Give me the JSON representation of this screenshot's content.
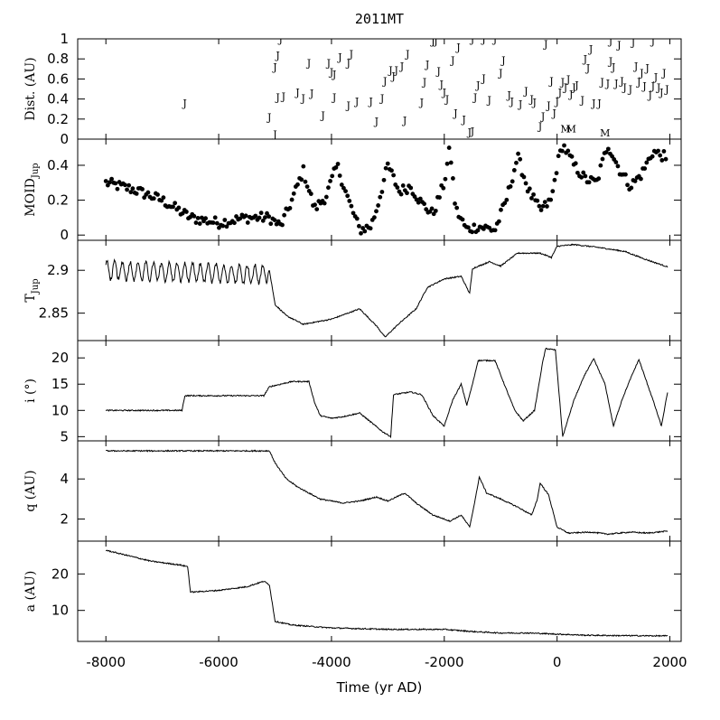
{
  "chart_data": {
    "type": "multi-panel",
    "title": "2011MT",
    "xlabel": "Time (yr AD)",
    "xlim": [
      -8500,
      2200
    ],
    "xticks": [
      -8000,
      -6000,
      -4000,
      -2000,
      0,
      2000
    ],
    "panels": [
      {
        "id": "dist",
        "type": "scatter-text",
        "ylabel": "Dist. (AU)",
        "ylim": [
          0,
          1
        ],
        "yticks": [
          0,
          0.2,
          0.4,
          0.6,
          0.8,
          1
        ],
        "ytick_labels": [
          "0",
          "0.2",
          "0.4",
          "0.6",
          "0.8",
          "1"
        ],
        "marker_label": "J",
        "marker_label_moon": "M",
        "points": [
          [
            -6600,
            0.36
          ],
          [
            -5100,
            0.22
          ],
          [
            -5000,
            0.05
          ],
          [
            -5000,
            0.72
          ],
          [
            -4950,
            0.84
          ],
          [
            -4900,
            1.0
          ],
          [
            -4950,
            0.42
          ],
          [
            -4850,
            0.43
          ],
          [
            -4600,
            0.47
          ],
          [
            -4500,
            0.41
          ],
          [
            -4400,
            0.76
          ],
          [
            -4350,
            0.46
          ],
          [
            -4150,
            0.24
          ],
          [
            -4050,
            0.76
          ],
          [
            -4000,
            0.67
          ],
          [
            -3950,
            0.42
          ],
          [
            -3950,
            0.65
          ],
          [
            -3850,
            0.82
          ],
          [
            -3700,
            0.76
          ],
          [
            -3700,
            0.34
          ],
          [
            -3650,
            0.85
          ],
          [
            -3550,
            0.38
          ],
          [
            -3300,
            0.38
          ],
          [
            -3200,
            0.18
          ],
          [
            -3100,
            0.41
          ],
          [
            -3050,
            0.58
          ],
          [
            -2950,
            0.69
          ],
          [
            -2900,
            0.63
          ],
          [
            -2850,
            0.69
          ],
          [
            -2750,
            0.73
          ],
          [
            -2700,
            0.19
          ],
          [
            -2650,
            0.85
          ],
          [
            -2400,
            0.37
          ],
          [
            -2350,
            0.57
          ],
          [
            -2300,
            0.75
          ],
          [
            -2200,
            0.98
          ],
          [
            -2150,
            0.98
          ],
          [
            -2100,
            0.68
          ],
          [
            -2050,
            0.55
          ],
          [
            -2000,
            0.47
          ],
          [
            -1950,
            0.4
          ],
          [
            -1850,
            0.79
          ],
          [
            -1800,
            0.26
          ],
          [
            -1750,
            0.92
          ],
          [
            -1650,
            0.2
          ],
          [
            -1550,
            0.07
          ],
          [
            -1500,
            1.0
          ],
          [
            -1500,
            0.08
          ],
          [
            -1450,
            0.42
          ],
          [
            -1400,
            0.54
          ],
          [
            -1300,
            1.0
          ],
          [
            -1300,
            0.61
          ],
          [
            -1200,
            0.39
          ],
          [
            -1100,
            1.0
          ],
          [
            -1000,
            0.66
          ],
          [
            -950,
            0.79
          ],
          [
            -850,
            0.44
          ],
          [
            -800,
            0.38
          ],
          [
            -650,
            0.35
          ],
          [
            -550,
            0.48
          ],
          [
            -450,
            0.4
          ],
          [
            -400,
            0.37
          ],
          [
            -300,
            0.13
          ],
          [
            -250,
            0.23
          ],
          [
            -200,
            0.95
          ],
          [
            -150,
            0.34
          ],
          [
            -100,
            0.58
          ],
          [
            -50,
            0.26
          ],
          [
            0,
            0.38
          ],
          [
            50,
            0.47
          ],
          [
            100,
            0.57
          ],
          [
            150,
            0.52
          ],
          [
            200,
            0.6
          ],
          [
            250,
            0.45
          ],
          [
            300,
            0.52
          ],
          [
            350,
            0.54
          ],
          [
            450,
            0.39
          ],
          [
            500,
            0.8
          ],
          [
            550,
            0.71
          ],
          [
            600,
            0.9
          ],
          [
            650,
            0.36
          ],
          [
            750,
            0.36
          ],
          [
            800,
            0.57
          ],
          [
            900,
            0.56
          ],
          [
            950,
            0.78
          ],
          [
            950,
            0.98
          ],
          [
            1000,
            0.72
          ],
          [
            1050,
            0.56
          ],
          [
            1100,
            0.94
          ],
          [
            1150,
            0.58
          ],
          [
            1200,
            0.52
          ],
          [
            1300,
            0.5
          ],
          [
            1350,
            0.97
          ],
          [
            1400,
            0.73
          ],
          [
            1450,
            0.57
          ],
          [
            1500,
            0.66
          ],
          [
            1550,
            0.53
          ],
          [
            1600,
            0.71
          ],
          [
            1650,
            0.44
          ],
          [
            1700,
            0.53
          ],
          [
            1700,
            0.98
          ],
          [
            1750,
            0.62
          ],
          [
            1800,
            0.52
          ],
          [
            1850,
            0.47
          ],
          [
            1900,
            0.66
          ],
          [
            1950,
            0.5
          ]
        ],
        "moon_points": [
          [
            150,
            0.05
          ],
          [
            250,
            0.05
          ],
          [
            850,
            0.01
          ]
        ]
      },
      {
        "id": "moid",
        "type": "scatter",
        "ylabel": "MOID",
        "ylabel_sub": "Jup",
        "ylim": [
          -0.03,
          0.55
        ],
        "yticks": [
          0,
          0.2,
          0.4
        ],
        "ytick_labels": [
          "0",
          "0.2",
          "0.4"
        ],
        "keyframes": [
          [
            -8000,
            0.3
          ],
          [
            -7500,
            0.26
          ],
          [
            -7000,
            0.2
          ],
          [
            -6500,
            0.1
          ],
          [
            -6000,
            0.07
          ],
          [
            -5500,
            0.1
          ],
          [
            -5100,
            0.1
          ],
          [
            -4900,
            0.05
          ],
          [
            -4700,
            0.2
          ],
          [
            -4500,
            0.37
          ],
          [
            -4300,
            0.15
          ],
          [
            -4100,
            0.22
          ],
          [
            -3900,
            0.4
          ],
          [
            -3700,
            0.2
          ],
          [
            -3500,
            0.03
          ],
          [
            -3300,
            0.05
          ],
          [
            -3200,
            0.15
          ],
          [
            -3000,
            0.4
          ],
          [
            -2800,
            0.25
          ],
          [
            -2600,
            0.28
          ],
          [
            -2400,
            0.18
          ],
          [
            -2200,
            0.12
          ],
          [
            -2000,
            0.3
          ],
          [
            -1900,
            0.5
          ],
          [
            -1800,
            0.15
          ],
          [
            -1600,
            0.03
          ],
          [
            -1400,
            0.05
          ],
          [
            -1100,
            0.03
          ],
          [
            -900,
            0.2
          ],
          [
            -700,
            0.45
          ],
          [
            -500,
            0.25
          ],
          [
            -300,
            0.14
          ],
          [
            -100,
            0.2
          ],
          [
            0,
            0.4
          ],
          [
            100,
            0.52
          ],
          [
            300,
            0.4
          ],
          [
            500,
            0.32
          ],
          [
            700,
            0.3
          ],
          [
            900,
            0.52
          ],
          [
            1100,
            0.38
          ],
          [
            1300,
            0.28
          ],
          [
            1500,
            0.35
          ],
          [
            1700,
            0.48
          ],
          [
            1900,
            0.45
          ],
          [
            1960,
            0.38
          ]
        ]
      },
      {
        "id": "tjup",
        "type": "line",
        "ylabel": "T",
        "ylabel_sub": "Jup",
        "ylim": [
          2.818,
          2.935
        ],
        "yticks": [
          2.85,
          2.9
        ],
        "ytick_labels": [
          "2.85",
          "2.9"
        ],
        "keyframes": [
          [
            -8000,
            2.9
          ],
          [
            -5200,
            2.895
          ],
          [
            -5100,
            2.9
          ],
          [
            -5000,
            2.86
          ],
          [
            -4800,
            2.847
          ],
          [
            -4500,
            2.837
          ],
          [
            -4000,
            2.843
          ],
          [
            -3500,
            2.855
          ],
          [
            -3200,
            2.835
          ],
          [
            -3050,
            2.822
          ],
          [
            -2800,
            2.838
          ],
          [
            -2500,
            2.855
          ],
          [
            -2300,
            2.88
          ],
          [
            -2000,
            2.89
          ],
          [
            -1700,
            2.893
          ],
          [
            -1550,
            2.873
          ],
          [
            -1500,
            2.902
          ],
          [
            -1200,
            2.91
          ],
          [
            -1000,
            2.905
          ],
          [
            -700,
            2.92
          ],
          [
            -300,
            2.92
          ],
          [
            -100,
            2.915
          ],
          [
            0,
            2.928
          ],
          [
            300,
            2.93
          ],
          [
            700,
            2.927
          ],
          [
            1200,
            2.922
          ],
          [
            1600,
            2.912
          ],
          [
            1960,
            2.904
          ]
        ]
      },
      {
        "id": "incl",
        "type": "line",
        "ylabel": "i (°)",
        "ylim": [
          4.2,
          23.3
        ],
        "yticks": [
          5,
          10,
          15,
          20
        ],
        "ytick_labels": [
          "5",
          "10",
          "15",
          "20"
        ],
        "keyframes": [
          [
            -8000,
            10.0
          ],
          [
            -6650,
            10.0
          ],
          [
            -6600,
            12.8
          ],
          [
            -5200,
            12.8
          ],
          [
            -5100,
            14.5
          ],
          [
            -4700,
            15.5
          ],
          [
            -4400,
            15.5
          ],
          [
            -4300,
            11.5
          ],
          [
            -4200,
            9.0
          ],
          [
            -4000,
            8.5
          ],
          [
            -3800,
            8.8
          ],
          [
            -3500,
            9.5
          ],
          [
            -3100,
            6.0
          ],
          [
            -2950,
            5.0
          ],
          [
            -2900,
            13.0
          ],
          [
            -2600,
            13.5
          ],
          [
            -2400,
            13.0
          ],
          [
            -2200,
            9.0
          ],
          [
            -2000,
            7.0
          ],
          [
            -1850,
            12.0
          ],
          [
            -1700,
            15.0
          ],
          [
            -1600,
            11.0
          ],
          [
            -1500,
            15.0
          ],
          [
            -1400,
            19.5
          ],
          [
            -1100,
            19.5
          ],
          [
            -900,
            14.0
          ],
          [
            -750,
            10.0
          ],
          [
            -600,
            8.0
          ],
          [
            -400,
            10.0
          ],
          [
            -250,
            19.5
          ],
          [
            -200,
            21.8
          ],
          [
            -30,
            21.5
          ],
          [
            100,
            5.0
          ],
          [
            300,
            12.0
          ],
          [
            500,
            17.0
          ],
          [
            650,
            19.8
          ],
          [
            850,
            15.0
          ],
          [
            1000,
            7.0
          ],
          [
            1150,
            12.0
          ],
          [
            1300,
            16.0
          ],
          [
            1450,
            19.7
          ],
          [
            1700,
            12.0
          ],
          [
            1850,
            7.0
          ],
          [
            1960,
            13.5
          ]
        ]
      },
      {
        "id": "q",
        "type": "line",
        "ylabel": "q (AU)",
        "ylim": [
          0.9,
          5.9
        ],
        "yticks": [
          2,
          4
        ],
        "ytick_labels": [
          "2",
          "4"
        ],
        "keyframes": [
          [
            -8000,
            5.4
          ],
          [
            -5100,
            5.4
          ],
          [
            -5000,
            4.8
          ],
          [
            -4800,
            4.0
          ],
          [
            -4600,
            3.6
          ],
          [
            -4200,
            3.0
          ],
          [
            -3800,
            2.8
          ],
          [
            -3500,
            2.9
          ],
          [
            -3200,
            3.1
          ],
          [
            -3000,
            2.9
          ],
          [
            -2700,
            3.3
          ],
          [
            -2500,
            2.8
          ],
          [
            -2200,
            2.2
          ],
          [
            -1900,
            1.9
          ],
          [
            -1700,
            2.2
          ],
          [
            -1550,
            1.6
          ],
          [
            -1450,
            3.0
          ],
          [
            -1380,
            4.1
          ],
          [
            -1250,
            3.3
          ],
          [
            -1000,
            3.0
          ],
          [
            -700,
            2.6
          ],
          [
            -450,
            2.2
          ],
          [
            -350,
            3.0
          ],
          [
            -300,
            3.8
          ],
          [
            -150,
            3.2
          ],
          [
            0,
            1.6
          ],
          [
            200,
            1.3
          ],
          [
            600,
            1.35
          ],
          [
            900,
            1.25
          ],
          [
            1300,
            1.35
          ],
          [
            1600,
            1.3
          ],
          [
            1960,
            1.4
          ]
        ]
      },
      {
        "id": "a",
        "type": "line",
        "ylabel": "a (AU)",
        "ylim": [
          1.5,
          29
        ],
        "yticks": [
          10,
          20
        ],
        "ytick_labels": [
          "10",
          "20"
        ],
        "keyframes": [
          [
            -8000,
            26.5
          ],
          [
            -7600,
            25.0
          ],
          [
            -7200,
            23.5
          ],
          [
            -6700,
            22.5
          ],
          [
            -6550,
            22.0
          ],
          [
            -6500,
            15.0
          ],
          [
            -6000,
            15.5
          ],
          [
            -5500,
            16.5
          ],
          [
            -5200,
            18.0
          ],
          [
            -5100,
            17.0
          ],
          [
            -5000,
            7.0
          ],
          [
            -4700,
            6.0
          ],
          [
            -4000,
            5.2
          ],
          [
            -3000,
            4.8
          ],
          [
            -2000,
            4.8
          ],
          [
            -1500,
            4.2
          ],
          [
            -1000,
            3.8
          ],
          [
            -500,
            3.8
          ],
          [
            0,
            3.5
          ],
          [
            500,
            3.2
          ],
          [
            1000,
            3.1
          ],
          [
            1960,
            3.0
          ]
        ]
      }
    ]
  }
}
